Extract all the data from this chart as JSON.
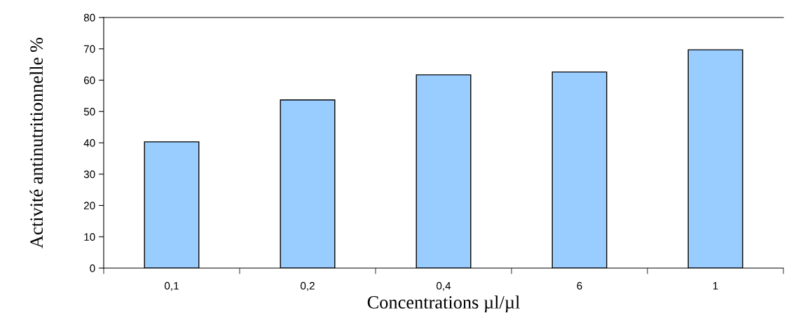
{
  "chart_data": {
    "type": "bar",
    "xlabel": "Concentrations µl/µl",
    "ylabel": "Activité antinutritionnelle %",
    "categories": [
      "0,1",
      "0,2",
      "0,4",
      "6",
      "1"
    ],
    "values": [
      40.3,
      53.7,
      61.7,
      62.6,
      69.7
    ],
    "color": "#99ccff",
    "ylim": [
      0,
      80
    ],
    "yticks": [
      0,
      10,
      20,
      30,
      40,
      50,
      60,
      70,
      80
    ],
    "grid": false
  }
}
